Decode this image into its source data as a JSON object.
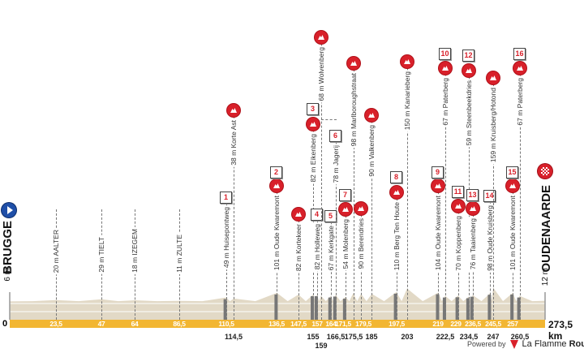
{
  "chart_data": {
    "type": "area",
    "title": "",
    "xlabel": "",
    "ylabel": "",
    "x_unit": "km",
    "xlim": [
      0,
      273.5
    ],
    "start": {
      "name": "BRUGGE",
      "altitude_label": "6 m",
      "altitude": 6,
      "icon": "start-play-icon",
      "origin_label": "0"
    },
    "finish": {
      "name": "OUDENAARDE",
      "altitude_label": "12 m",
      "altitude": 12,
      "distance_label": "273,5 km",
      "icon": "finish-checkered-icon"
    },
    "points": [
      {
        "km": 23.5,
        "km_label": "23,5",
        "alt": 20,
        "name": "AALTER",
        "kind": "town",
        "row": "top"
      },
      {
        "km": 47,
        "km_label": "47",
        "alt": 29,
        "name": "TIELT",
        "kind": "town",
        "row": "top"
      },
      {
        "km": 64,
        "km_label": "64",
        "alt": 18,
        "name": "IZEGEM",
        "kind": "town",
        "row": "top"
      },
      {
        "km": 86.5,
        "km_label": "86,5",
        "alt": 11,
        "name": "ZULTE",
        "kind": "town",
        "row": "top"
      },
      {
        "km": 110.5,
        "km_label": "110,5",
        "alt": 49,
        "name": "Huisepontweg",
        "kind": "sector",
        "sector": "1",
        "row": "top"
      },
      {
        "km": 114.5,
        "km_label": "114,5",
        "alt": 38,
        "name": "Korte Ast",
        "kind": "climb",
        "row": "bottom"
      },
      {
        "km": 136.5,
        "km_label": "136,5",
        "alt": 101,
        "name": "Oude Kwaremont",
        "kind": "climb",
        "sector": "2",
        "row": "top"
      },
      {
        "km": 147.5,
        "km_label": "147,5",
        "alt": 82,
        "name": "Kortekeer",
        "kind": "climb",
        "row": "top"
      },
      {
        "km": 155,
        "km_label": "155",
        "alt": 82,
        "name": "Eikenberg",
        "kind": "climb",
        "sector": "3",
        "row": "bottom"
      },
      {
        "km": 157,
        "km_label": "157",
        "alt": 82,
        "name": "Holleweg",
        "kind": "sector",
        "sector": "4",
        "row": "top"
      },
      {
        "km": 159,
        "km_label": "159",
        "alt": 68,
        "name": "Wolvenberg",
        "kind": "climb",
        "row": "bottom2"
      },
      {
        "km": 164,
        "km_label": "164",
        "alt": 67,
        "name": "Kerkgate",
        "kind": "sector",
        "sector": "5",
        "row": "top"
      },
      {
        "km": 166.5,
        "km_label": "166,5",
        "alt": 78,
        "name": "Jagerij",
        "kind": "sector",
        "sector": "6",
        "row": "bottom"
      },
      {
        "km": 171.5,
        "km_label": "171,5",
        "alt": 54,
        "name": "Molenberg",
        "kind": "climb",
        "sector": "7",
        "row": "top"
      },
      {
        "km": 175.5,
        "km_label": "175,5",
        "alt": 98,
        "name": "Marlboroughstraat",
        "kind": "climb",
        "row": "bottom"
      },
      {
        "km": 179.5,
        "km_label": "179,5",
        "alt": 90,
        "name": "Berendries",
        "kind": "climb",
        "row": "top"
      },
      {
        "km": 185,
        "km_label": "185",
        "alt": 90,
        "name": "Valkenberg",
        "kind": "climb",
        "row": "bottom"
      },
      {
        "km": 197.5,
        "km_label": "197,5",
        "alt": 110,
        "name": "Berg Ten Houte",
        "kind": "climb",
        "sector": "8",
        "row": "top"
      },
      {
        "km": 203,
        "km_label": "203",
        "alt": 150,
        "name": "Kanarieberg",
        "kind": "climb",
        "row": "bottom"
      },
      {
        "km": 219,
        "km_label": "219",
        "alt": 104,
        "name": "Oude Kwaremont",
        "kind": "climb",
        "sector": "9",
        "row": "top"
      },
      {
        "km": 222.5,
        "km_label": "222,5",
        "alt": 67,
        "name": "Paterberg",
        "kind": "climb",
        "sector": "10",
        "row": "bottom"
      },
      {
        "km": 229,
        "km_label": "229",
        "alt": 70,
        "name": "Koppenberg",
        "kind": "climb",
        "sector": "11",
        "row": "top"
      },
      {
        "km": 234.5,
        "km_label": "234,5",
        "alt": 59,
        "name": "Steenbeekdries",
        "kind": "climb",
        "sector": "12",
        "row": "bottom"
      },
      {
        "km": 236.5,
        "km_label": "236,5",
        "alt": 76,
        "name": "Taaienberg",
        "kind": "climb",
        "sector": "13",
        "row": "top"
      },
      {
        "km": 245.5,
        "km_label": "245,5",
        "alt": 98,
        "name": "Oude Kruisberg",
        "kind": "sector",
        "sector": "14",
        "row": "top"
      },
      {
        "km": 247,
        "km_label": "247",
        "alt": 159,
        "name": "Kruisberg/Hotond",
        "kind": "climb",
        "row": "bottom"
      },
      {
        "km": 257,
        "km_label": "257",
        "alt": 101,
        "name": "Oude Kwaremont",
        "kind": "climb",
        "sector": "15",
        "row": "top"
      },
      {
        "km": 260.5,
        "km_label": "260,5",
        "alt": 67,
        "name": "Paterberg",
        "kind": "climb",
        "sector": "16",
        "row": "bottom"
      }
    ],
    "colors": {
      "km_bar": "#f2b632",
      "terrain": "#e2d9c6",
      "climb_icon": "#d8202a",
      "sector_number": "#d8202a",
      "cobbles": "#777777"
    }
  },
  "footer": {
    "powered_by": "Powered by",
    "brand_part1": "La Flamme",
    "brand_part2": "Rouge",
    "brand_color": "#d8202a"
  }
}
